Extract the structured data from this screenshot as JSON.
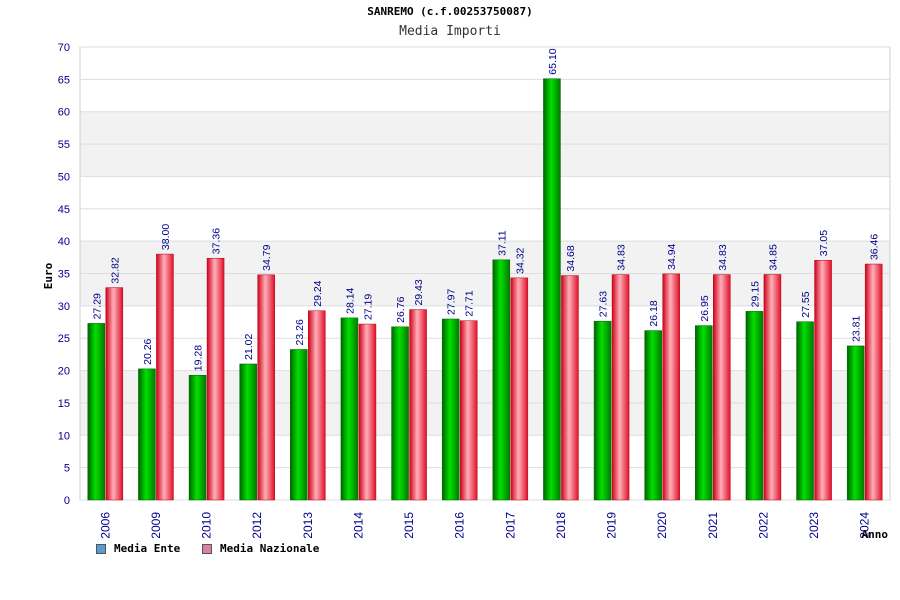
{
  "title": "SANREMO (c.f.00253750087)",
  "subtitle": "Media Importi",
  "legend": [
    {
      "label": "Media Ente",
      "color": "#5b9bd5"
    },
    {
      "label": "Media Nazionale",
      "color": "#d980a8"
    }
  ],
  "colors": {
    "ente_bar": "#00b000",
    "nazionale_bar": "#e83040",
    "axis_text": "#00008b",
    "grid_band": "#f2f2f2"
  },
  "chart_data": {
    "type": "bar",
    "xlabel": "Anno",
    "ylabel": "Euro",
    "ylim": [
      0,
      70
    ],
    "yticks": [
      0,
      5,
      10,
      15,
      20,
      25,
      30,
      35,
      40,
      45,
      50,
      55,
      60,
      65,
      70
    ],
    "categories": [
      "2006",
      "2009",
      "2010",
      "2012",
      "2013",
      "2014",
      "2015",
      "2016",
      "2017",
      "2018",
      "2019",
      "2020",
      "2021",
      "2022",
      "2023",
      "2024"
    ],
    "series": [
      {
        "name": "Media Ente",
        "values": [
          27.29,
          20.26,
          19.28,
          21.02,
          23.26,
          28.14,
          26.76,
          27.97,
          37.11,
          65.1,
          27.63,
          26.18,
          26.95,
          29.15,
          27.55,
          23.81
        ],
        "labels": [
          "27.29",
          "20.26",
          "19.28",
          "21.02",
          "23.26",
          "28.14",
          "26.76",
          "27.97",
          "37.11",
          "65.10",
          "27.63",
          "26.18",
          "26.95",
          "29.15",
          "27.55",
          "23.81"
        ]
      },
      {
        "name": "Media Nazionale",
        "values": [
          32.82,
          38.0,
          37.36,
          34.79,
          29.24,
          27.19,
          29.43,
          27.71,
          34.32,
          34.68,
          34.83,
          34.94,
          34.83,
          34.85,
          37.05,
          36.46
        ],
        "labels": [
          "32.82",
          "38.00",
          "37.36",
          "34.79",
          "29.24",
          "27.19",
          "29.43",
          "27.71",
          "34.32",
          "34.68",
          "34.83",
          "34.94",
          "34.83",
          "34.85",
          "37.05",
          "36.46"
        ]
      }
    ]
  }
}
